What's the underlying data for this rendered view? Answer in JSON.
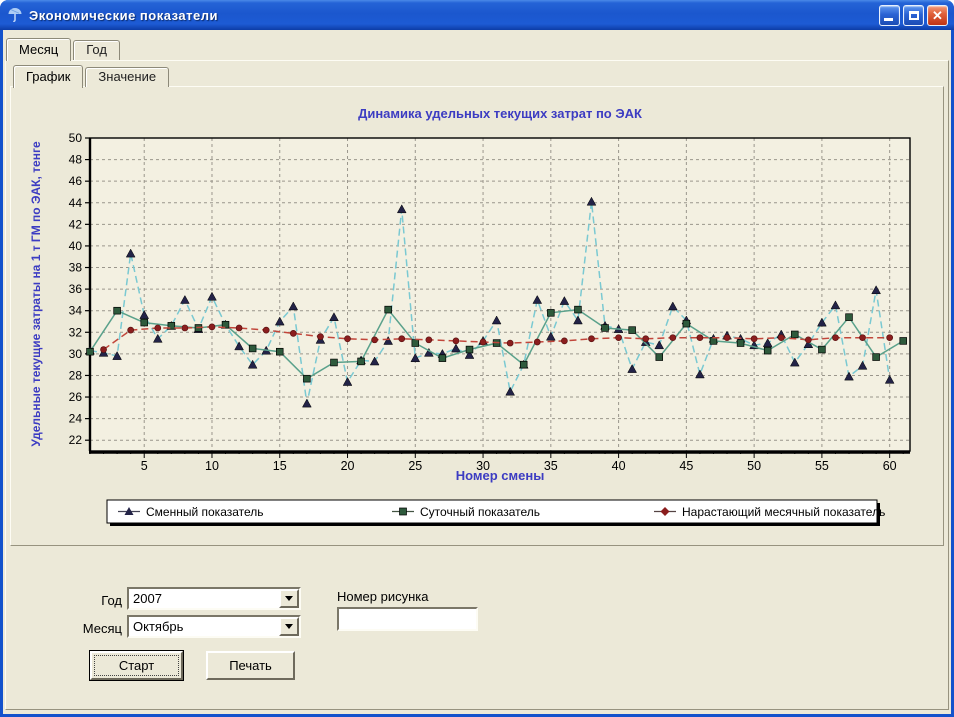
{
  "window": {
    "title": "Экономические показатели",
    "minimize_glyph": "",
    "maximize_glyph": "",
    "close_glyph": "✕"
  },
  "tabs_outer": {
    "items": [
      {
        "label": "Месяц",
        "active": true
      },
      {
        "label": "Год",
        "active": false
      }
    ]
  },
  "tabs_inner": {
    "items": [
      {
        "label": "График",
        "active": true
      },
      {
        "label": "Значение",
        "active": false
      }
    ]
  },
  "chart_data": {
    "type": "line",
    "title": "Динамика удельных текущих затрат по ЭАК",
    "xlabel": "Номер смены",
    "ylabel": "Удельные текущие затраты на 1 т ГМ по ЭАК, тенге",
    "text_color": "#3C3CC2",
    "plot_bg": "#F3F0E1",
    "grid_color": "#9a968c",
    "grid": true,
    "legend_position": "bottom",
    "xlim": [
      1,
      61.5
    ],
    "ylim": [
      21,
      50
    ],
    "x_ticks": {
      "min": 5,
      "max": 60,
      "step": 5,
      "minor_step": 1
    },
    "y_ticks": {
      "min": 22,
      "max": 50,
      "step": 2
    },
    "series": [
      {
        "name": "Сменный показатель",
        "marker": "triangle",
        "dash": true,
        "line_color": "#7AC9D2",
        "marker_color": "#232347",
        "x": [
          1,
          2,
          3,
          4,
          5,
          6,
          7,
          8,
          9,
          10,
          11,
          12,
          13,
          14,
          15,
          16,
          17,
          18,
          19,
          20,
          21,
          22,
          23,
          24,
          25,
          26,
          27,
          28,
          29,
          30,
          31,
          32,
          33,
          34,
          35,
          36,
          37,
          38,
          39,
          40,
          41,
          42,
          43,
          44,
          45,
          46,
          47,
          48,
          49,
          50,
          51,
          52,
          53,
          54,
          55,
          56,
          57,
          58,
          59,
          60
        ],
        "values": [
          30.3,
          30.1,
          29.8,
          39.3,
          33.6,
          31.4,
          32.6,
          35.0,
          32.3,
          35.3,
          32.7,
          30.7,
          29.0,
          30.3,
          33.0,
          34.4,
          25.4,
          31.3,
          33.4,
          27.4,
          29.4,
          29.3,
          31.2,
          43.4,
          29.6,
          30.1,
          30.0,
          30.5,
          29.9,
          31.2,
          33.1,
          26.5,
          29.0,
          35.0,
          31.6,
          34.9,
          33.1,
          44.1,
          32.6,
          32.3,
          28.6,
          31.1,
          30.8,
          34.4,
          33.1,
          28.1,
          31.4,
          31.7,
          31.4,
          30.8,
          31.0,
          31.8,
          29.2,
          30.9,
          32.9,
          34.5,
          27.9,
          28.9,
          35.9,
          27.6
        ]
      },
      {
        "name": "Суточный показатель",
        "marker": "square",
        "dash": false,
        "line_color": "#5AA18B",
        "marker_color": "#2E5A3C",
        "x": [
          1,
          3,
          5,
          7,
          9,
          11,
          13,
          15,
          17,
          19,
          21,
          23,
          25,
          27,
          29,
          31,
          33,
          35,
          37,
          39,
          41,
          43,
          45,
          47,
          49,
          51,
          53,
          55,
          57,
          59,
          61
        ],
        "values": [
          30.2,
          34.0,
          32.9,
          32.6,
          32.4,
          32.7,
          30.5,
          30.2,
          27.7,
          29.2,
          29.3,
          34.1,
          31.0,
          29.6,
          30.4,
          31.0,
          29.0,
          33.8,
          34.1,
          32.4,
          32.2,
          29.7,
          32.8,
          31.2,
          31.0,
          30.3,
          31.8,
          30.4,
          33.4,
          29.7,
          31.2
        ]
      },
      {
        "name": "Нарастающий месячный показатель",
        "marker": "circle",
        "dash": true,
        "line_color": "#C1463B",
        "marker_color": "#8B1E1E",
        "x": [
          2,
          4,
          6,
          8,
          10,
          12,
          14,
          16,
          18,
          20,
          22,
          24,
          26,
          28,
          30,
          32,
          34,
          36,
          38,
          40,
          42,
          44,
          46,
          48,
          50,
          52,
          54,
          56,
          58,
          60
        ],
        "values": [
          30.4,
          32.2,
          32.4,
          32.4,
          32.5,
          32.4,
          32.2,
          31.9,
          31.6,
          31.4,
          31.3,
          31.4,
          31.3,
          31.2,
          31.1,
          31.0,
          31.1,
          31.2,
          31.4,
          31.5,
          31.4,
          31.5,
          31.5,
          31.5,
          31.4,
          31.5,
          31.3,
          31.5,
          31.5,
          31.5
        ]
      }
    ]
  },
  "controls": {
    "year_label": "Год",
    "year_value": "2007",
    "month_label": "Месяц",
    "month_value": "Октябрь",
    "figure_label": "Номер рисунка",
    "figure_value": "",
    "start_button": "Старт",
    "print_button": "Печать"
  }
}
